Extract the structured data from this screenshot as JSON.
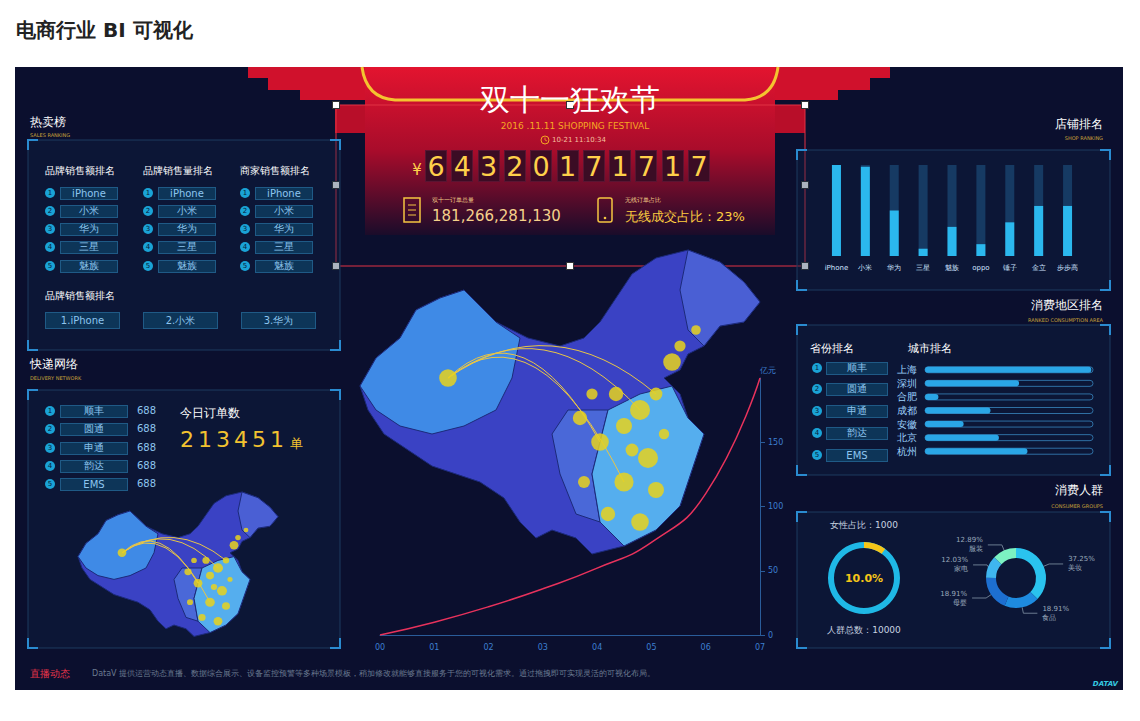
{
  "page_title": "电商行业 BI 可视化",
  "ranks": [
    1,
    2,
    3,
    4,
    5
  ],
  "banner": {
    "title": "双十一狂欢节",
    "subtitle": "2016 .11.11 SHOPPING FESTIVAL",
    "time": "10-21 11:10:34",
    "currency": "¥",
    "digits": "64320171717",
    "orders_label": "双十一订单总量",
    "orders": "181,266,281,130",
    "wireless_label": "无线订单占比",
    "wireless": "无线成交占比：23%"
  },
  "hot": {
    "title": "热卖榜",
    "subtitle": "SALES RANKING",
    "columns": [
      {
        "header": "品牌销售额排名",
        "items": [
          "iPhone",
          "小米",
          "华为",
          "三星",
          "魅族"
        ]
      },
      {
        "header": "品牌销售量排名",
        "items": [
          "iPhone",
          "小米",
          "华为",
          "三星",
          "魅族"
        ]
      },
      {
        "header": "商家销售额排名",
        "items": [
          "iPhone",
          "小米",
          "华为",
          "三星",
          "魅族"
        ]
      }
    ],
    "top_header": "品牌销售额排名",
    "top_items": [
      "1.iPhone",
      "2.小米",
      "3.华为"
    ]
  },
  "delivery": {
    "title": "快递网络",
    "subtitle": "DELIVERY NETWORK",
    "items": [
      "顺丰",
      "圆通",
      "申通",
      "韵达",
      "EMS"
    ],
    "values": [
      688,
      688,
      688,
      688,
      688
    ],
    "orders_label": "今日订单数",
    "orders": "213451",
    "orders_unit": "单"
  },
  "shop": {
    "title": "店铺排名",
    "subtitle": "SHOP RANKING"
  },
  "area": {
    "title": "消费地区排名",
    "subtitle": "RANKED CONSUMPTION AREA",
    "province_header": "省份排名",
    "city_header": "城市排名",
    "provinces": [
      "顺丰",
      "圆通",
      "申通",
      "韵达",
      "EMS"
    ]
  },
  "consumers": {
    "title": "消费人群",
    "subtitle": "CONSUMER GROUPS",
    "female": "女性占比：1000",
    "total": "人群总数：10000"
  },
  "footer": {
    "label": "直播动态",
    "text": "DataV 提供运营动态直播、数据综合展示、设备监控预警等多种场景模板，稍加修改就能够直接服务于您的可视化需求。通过拖拽即可实现灵活的可视化布局。",
    "logo": "DATAV"
  },
  "chart_data": [
    {
      "type": "bar",
      "categories": [
        "iPhone",
        "小米",
        "华为",
        "三星",
        "魅族",
        "oppo",
        "锤子",
        "金立",
        "步步高"
      ],
      "values": [
        100,
        98,
        50,
        8,
        32,
        13,
        37,
        55,
        55
      ],
      "ylim": [
        0,
        100
      ],
      "color": "#2bb8ee",
      "tick_labels": "x"
    },
    {
      "type": "bar",
      "orientation": "horizontal",
      "categories": [
        "上海",
        "深圳",
        "合肥",
        "成都",
        "安徽",
        "北京",
        "杭州"
      ],
      "values": [
        99,
        56,
        8,
        39,
        23,
        44,
        61
      ],
      "xlim": [
        0,
        100
      ],
      "color": "#2aa6e6",
      "tick_labels": "y"
    },
    {
      "type": "line",
      "categories": [
        "00",
        "01",
        "02",
        "03",
        "04",
        "05",
        "06",
        "07"
      ],
      "values": [
        0,
        10,
        22,
        36,
        52,
        72,
        110,
        200
      ],
      "ylim": [
        0,
        200
      ],
      "yticks": [
        0,
        50,
        100,
        150
      ],
      "ylabel": "亿元",
      "color": "#e8325c",
      "grid": false
    },
    {
      "type": "gauge",
      "values": [
        10
      ],
      "value_labels": [
        "10.0%"
      ],
      "range": [
        0,
        100
      ],
      "color": "#f5c518"
    },
    {
      "type": "pie",
      "categories": [
        "美妆",
        "食品",
        "母婴",
        "家电",
        "服装"
      ],
      "values": [
        37.25,
        18.91,
        18.91,
        12.03,
        12.89
      ],
      "value_labels": [
        "37.25%",
        "18.91%",
        "18.91%",
        "12.03%",
        "12.89%"
      ],
      "colors": [
        "#2ac3ee",
        "#1e8be0",
        "#1d6fd1",
        "#3fb6f0",
        "#7cf2c2"
      ]
    }
  ]
}
